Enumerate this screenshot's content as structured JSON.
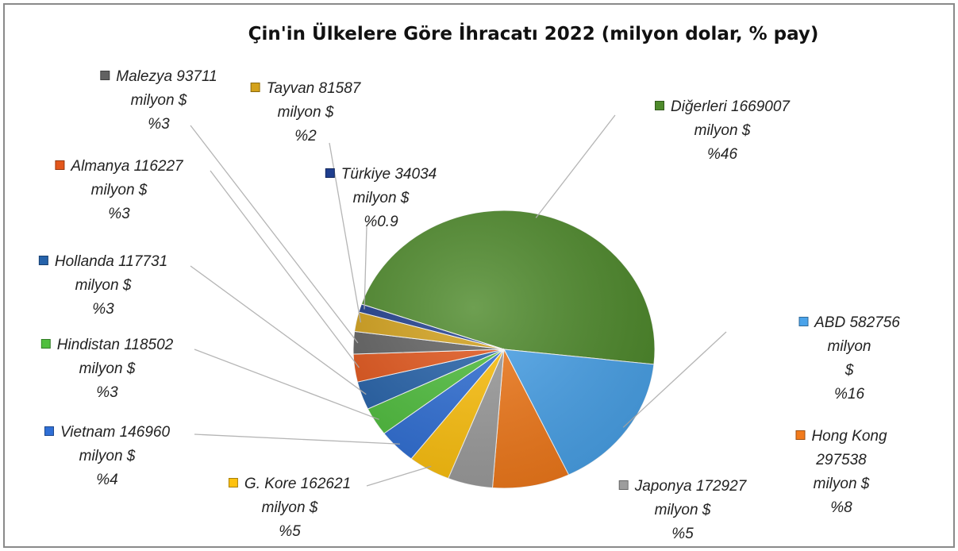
{
  "chart_data": {
    "type": "pie",
    "title": "Çin'in Ülkelere Göre İhracatı 2022 (milyon dolar, % pay)",
    "categories": [
      "Diğerleri",
      "ABD",
      "Hong Kong",
      "Japonya",
      "G. Kore",
      "Vietnam",
      "Hindistan",
      "Hollanda",
      "Almanya",
      "Malezya",
      "Tayvan",
      "Türkiye"
    ],
    "values": [
      1669007,
      582756,
      297538,
      172927,
      162621,
      146960,
      118502,
      117731,
      116227,
      93711,
      81587,
      34034
    ],
    "value_labels": [
      "1669007\nmilyon $\n%46",
      "582756 milyon\n$\n%16",
      "297538\nmilyon $\n%8",
      "172927\nmilyon $\n%5",
      "162621\nmilyon $\n%5",
      "146960\nmilyon $\n%4",
      "118502\nmilyon $\n%3",
      "117731\nmilyon $\n%3",
      "116227\nmilyon $\n%3",
      "93711\nmilyon $\n%3",
      "81587\nmilyon $\n%2",
      "34034\nmilyon $\n%0.9"
    ],
    "colors": [
      "#4e8a2b",
      "#4aa3ea",
      "#f27a1b",
      "#9d9d9d",
      "#ffc20e",
      "#2f6fd6",
      "#4fbf3d",
      "#2562aa",
      "#e3561b",
      "#626262",
      "#d3a11a",
      "#1f3e8e"
    ]
  }
}
